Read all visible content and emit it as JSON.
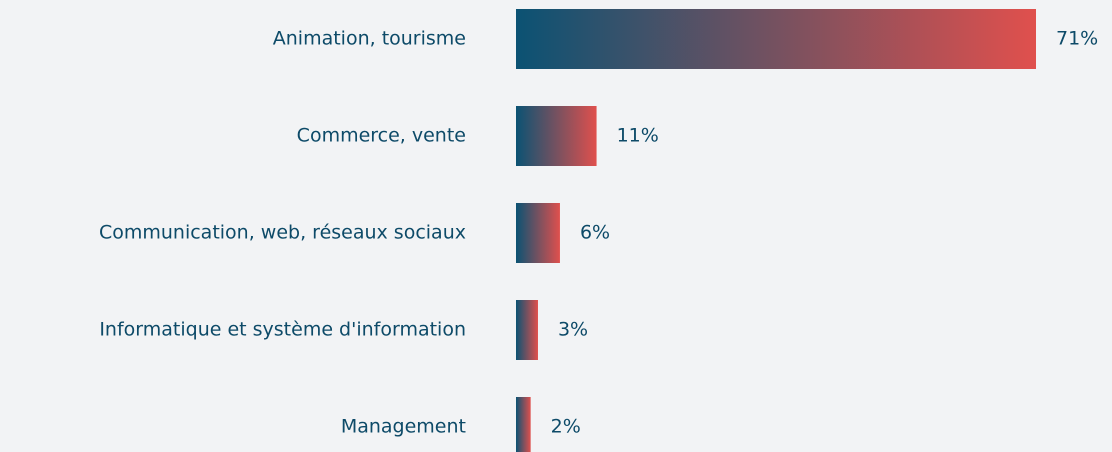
{
  "chart_data": {
    "type": "bar",
    "orientation": "horizontal",
    "categories": [
      "Animation, tourisme",
      "Commerce, vente",
      "Communication, web, réseaux sociaux",
      "Informatique et système d'information",
      "Management"
    ],
    "values": [
      71,
      11,
      6,
      3,
      2
    ],
    "value_labels": [
      "71%",
      "11%",
      "6%",
      "3%",
      "2%"
    ],
    "colors": [
      "#0b5273",
      "#e0504d"
    ]
  }
}
